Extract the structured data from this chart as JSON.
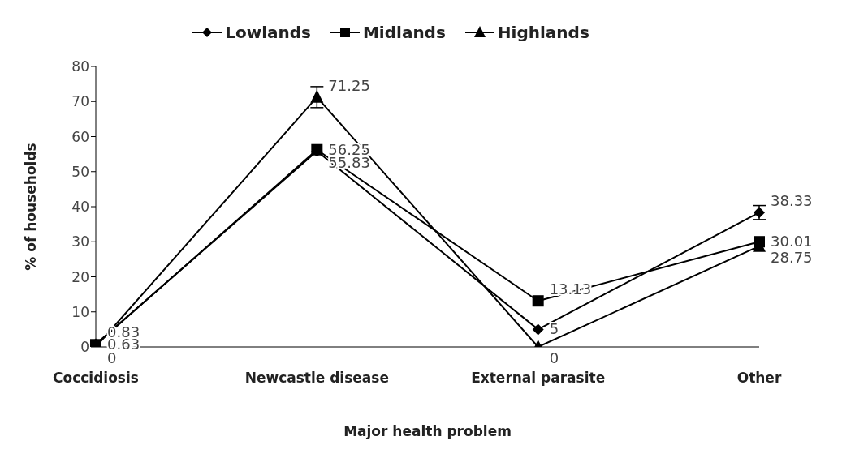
{
  "chart_data": {
    "type": "line",
    "xlabel": "Major health problem",
    "ylabel": "% of households",
    "categories": [
      "Coccidiosis",
      "Newcastle disease",
      "External parasite",
      "Other"
    ],
    "series": [
      {
        "name": "Lowlands",
        "color": "#000000",
        "marker": "diamond",
        "values": [
          0.83,
          55.83,
          5,
          38.33
        ],
        "errors": [
          null,
          null,
          null,
          2
        ]
      },
      {
        "name": "Midlands",
        "color": "#000000",
        "marker": "square",
        "values": [
          0.63,
          56.25,
          13.13,
          30.01
        ]
      },
      {
        "name": "Highlands",
        "color": "#000000",
        "marker": "triangle",
        "values": [
          0,
          71.25,
          0,
          28.75
        ],
        "errors": [
          null,
          3,
          null,
          null
        ]
      }
    ],
    "ylim": [
      0,
      80
    ],
    "yticks": [
      0,
      10,
      20,
      30,
      40,
      50,
      60,
      70,
      80
    ],
    "grid": false,
    "legend": "top",
    "data_labels": true
  }
}
